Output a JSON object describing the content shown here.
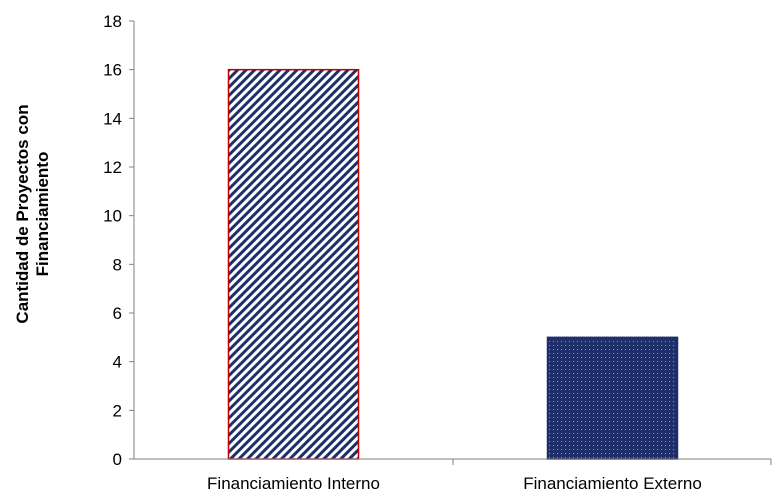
{
  "chart_data": {
    "type": "bar",
    "title": "",
    "xlabel": "",
    "ylabel_lines": [
      "Cantidad de Proyectos con",
      "Financiamiento"
    ],
    "categories": [
      "Financiamiento Interno",
      "Financiamiento Externo"
    ],
    "values": [
      16,
      5
    ],
    "ylim": [
      0,
      18
    ],
    "yticks": [
      0,
      2,
      4,
      6,
      8,
      10,
      12,
      14,
      16,
      18
    ],
    "grid": false,
    "legend": "none",
    "bar_styles": [
      {
        "pattern": "diagonal-stripes",
        "fill_color": "#1f2f6b",
        "background": "#ffffff",
        "border_color": "#c00000"
      },
      {
        "pattern": "dots",
        "fill_color": "#1f2f6b",
        "background": "#ffffff",
        "border_color": "#1f2f6b"
      }
    ]
  }
}
